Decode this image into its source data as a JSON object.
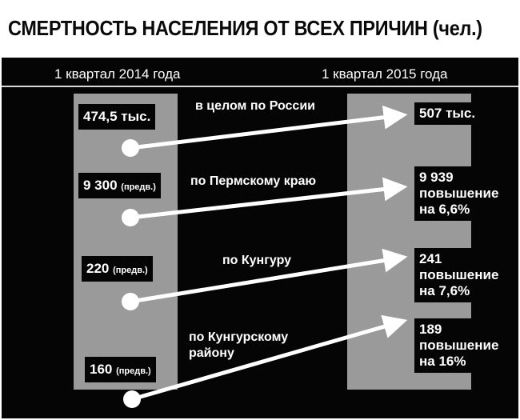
{
  "title": "СМЕРТНОСТЬ НАСЕЛЕНИЯ ОТ ВСЕХ ПРИЧИН (чел.)",
  "columns": {
    "left": "1 квартал 2014 года",
    "right": "1 квартал 2015 года"
  },
  "rows": [
    {
      "region": "в целом по России",
      "left_value": "474,5 тыс.",
      "left_note": "",
      "right_lines": [
        "507 тыс."
      ]
    },
    {
      "region": "по Пермскому краю",
      "left_value": "9 300",
      "left_note": "(предв.)",
      "right_lines": [
        "9 939",
        "повышение",
        "на 6,6%"
      ]
    },
    {
      "region": "по Кунгуру",
      "left_value": "220",
      "left_note": "(предв.)",
      "right_lines": [
        "241",
        "повышение",
        "на 7,6%"
      ]
    },
    {
      "region_lines": [
        "по Кунгурскому",
        "району"
      ],
      "left_value": "160",
      "left_note": "(предв.)",
      "right_lines": [
        "189",
        "повышение",
        "на 16%"
      ]
    }
  ],
  "colors": {
    "background": "#050505",
    "band": "#9a9a9a",
    "text": "#ffffff",
    "arrow": "#ffffff"
  }
}
